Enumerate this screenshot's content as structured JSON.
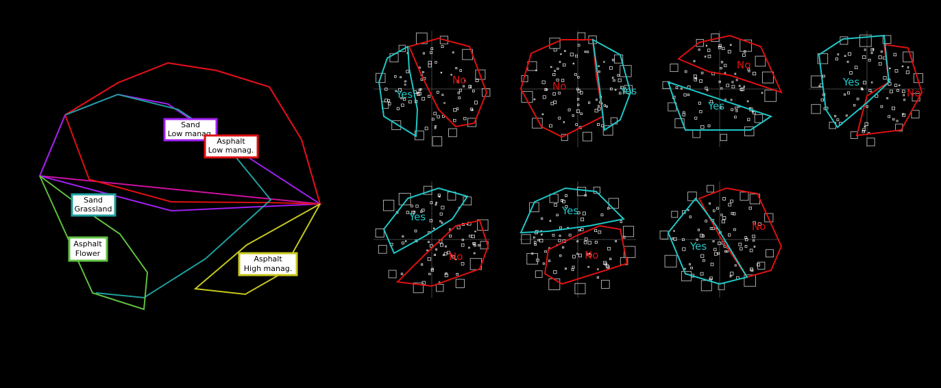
{
  "chart_data": [
    {
      "type": "scatter",
      "panel": "hull-overview",
      "groups": [
        {
          "label": [
            "Sand",
            "Low manag."
          ],
          "color": "#a020f0",
          "label_box_color": "#a020f0"
        },
        {
          "label": [
            "Asphalt",
            "Low manag."
          ],
          "color": "#e01010",
          "label_box_color": "#e01010"
        },
        {
          "label": [
            "Sand",
            "Grassland"
          ],
          "color": "#20a0a0",
          "label_box_color": "#20a0a0"
        },
        {
          "label": [
            "Asphalt",
            "Flower"
          ],
          "color": "#60c040",
          "label_box_color": "#60c040"
        },
        {
          "label": [
            "Asphalt",
            "High manag."
          ],
          "color": "#c8c820",
          "label_box_color": "#c8c820"
        }
      ],
      "outline_color": "#d010a0"
    },
    {
      "type": "scatter",
      "panel": "yes-no-ordinations",
      "yes_color": "#20c8c8",
      "no_color": "#e01010",
      "point_color": "#ffffff",
      "labels": {
        "yes": "Yes",
        "no": "No"
      },
      "subplots": [
        {
          "id": 1,
          "yes_label": "Yes",
          "no_label": "No"
        },
        {
          "id": 2,
          "yes_label": "Yes",
          "no_label": "No"
        },
        {
          "id": 3,
          "yes_label": "Yes",
          "no_label": "No"
        },
        {
          "id": 4,
          "yes_label": "Yes",
          "no_label": "No"
        },
        {
          "id": 5,
          "yes_label": "Yes",
          "no_label": "No"
        },
        {
          "id": 6,
          "yes_label": "Yes",
          "no_label": "No"
        },
        {
          "id": 7,
          "yes_label": "Yes",
          "no_label": "No"
        }
      ]
    }
  ]
}
